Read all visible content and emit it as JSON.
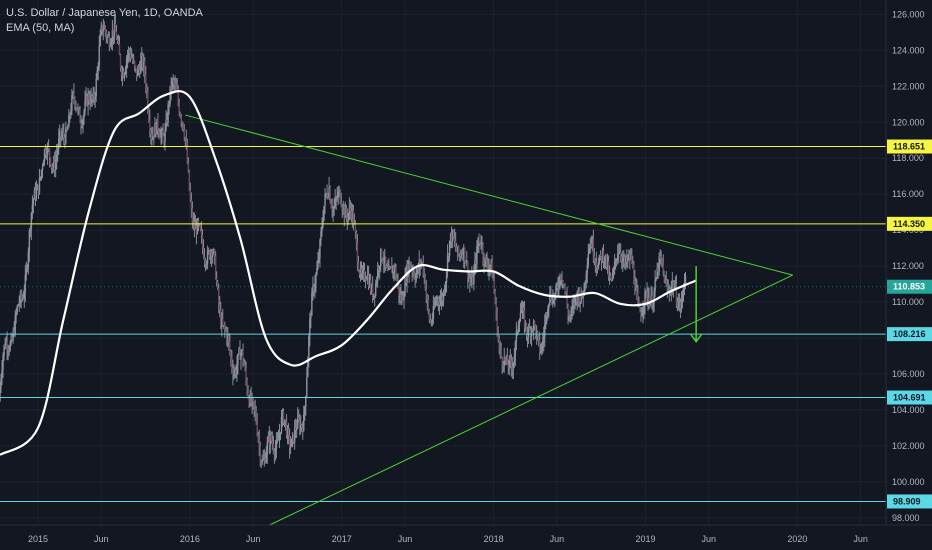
{
  "header": {
    "title": "U.S. Dollar / Japanese Yen, 1D, OANDA",
    "indicator": "EMA (50, MA)"
  },
  "colors": {
    "background": "#131722",
    "grid": "#1e222d",
    "candle": "#9aa0ab",
    "ema": "#ffffff",
    "trendline": "#4cd137",
    "resistance": "#f5f542",
    "support": "#5ad8e6",
    "arrow": "#4cd137",
    "price_tag": "#26a69a",
    "axis_text": "#b2b5be"
  },
  "chart_data": {
    "type": "line",
    "title": "U.S. Dollar / Japanese Yen, 1D, OANDA",
    "ylim": [
      97.6,
      126.8
    ],
    "x_range": [
      "2014-10",
      "2020-08"
    ],
    "grid": true,
    "x_ticks": [
      {
        "date": "2015-01",
        "label": "2015"
      },
      {
        "date": "2015-06",
        "label": "Jun"
      },
      {
        "date": "2016-01",
        "label": "2016"
      },
      {
        "date": "2016-06",
        "label": "Jun"
      },
      {
        "date": "2017-01",
        "label": "2017"
      },
      {
        "date": "2017-06",
        "label": "Jun"
      },
      {
        "date": "2018-01",
        "label": "2018"
      },
      {
        "date": "2018-06",
        "label": "Jun"
      },
      {
        "date": "2019-01",
        "label": "2019"
      },
      {
        "date": "2019-06",
        "label": "Jun"
      },
      {
        "date": "2020-01",
        "label": "2020"
      },
      {
        "date": "2020-06",
        "label": "Jun"
      }
    ],
    "y_ticks": [
      "98.000",
      "100.000",
      "102.000",
      "104.000",
      "106.000",
      "108.000",
      "110.000",
      "112.000",
      "114.000",
      "116.000",
      "118.000",
      "120.000",
      "122.000",
      "124.000",
      "126.000"
    ],
    "series": [
      {
        "name": "USDJPY",
        "x": [
          "2014-10",
          "2014-12",
          "2015-02",
          "2015-04",
          "2015-06",
          "2015-08",
          "2015-10",
          "2015-12",
          "2016-02",
          "2016-04",
          "2016-06",
          "2016-08",
          "2016-10",
          "2016-12",
          "2017-02",
          "2017-04",
          "2017-06",
          "2017-08",
          "2017-10",
          "2017-12",
          "2018-02",
          "2018-04",
          "2018-06",
          "2018-08",
          "2018-10",
          "2018-12",
          "2019-02",
          "2019-04"
        ],
        "y": [
          104.5,
          112.5,
          119.0,
          119.8,
          124.0,
          124.5,
          120.0,
          121.0,
          113.0,
          108.5,
          103.5,
          101.5,
          104.5,
          117.5,
          113.0,
          111.0,
          112.0,
          110.0,
          112.5,
          112.8,
          107.0,
          108.5,
          110.0,
          111.0,
          113.0,
          111.0,
          110.5,
          111.5
        ]
      },
      {
        "name": "EMA (50, MA)",
        "x": [
          "2014-10",
          "2015-01",
          "2015-03",
          "2015-05",
          "2015-07",
          "2015-09",
          "2015-11",
          "2016-01",
          "2016-03",
          "2016-05",
          "2016-07",
          "2016-09",
          "2016-11",
          "2017-01",
          "2017-03",
          "2017-05",
          "2017-07",
          "2017-09",
          "2017-11",
          "2018-01",
          "2018-03",
          "2018-05",
          "2018-07",
          "2018-09",
          "2018-11",
          "2019-01",
          "2019-03",
          "2019-05"
        ],
        "y": [
          101.5,
          103.0,
          109.0,
          115.0,
          119.5,
          120.5,
          121.5,
          121.4,
          118.0,
          113.5,
          108.0,
          106.5,
          107.0,
          107.6,
          109.0,
          110.7,
          112.0,
          111.8,
          111.7,
          111.7,
          110.9,
          110.4,
          110.3,
          110.5,
          109.9,
          109.9,
          110.6,
          111.2
        ]
      }
    ],
    "horizontal_levels": [
      {
        "value": 118.651,
        "label": "118.651",
        "role": "resistance"
      },
      {
        "value": 114.35,
        "label": "114.350",
        "role": "resistance"
      },
      {
        "value": 108.216,
        "label": "108.216",
        "role": "support"
      },
      {
        "value": 104.691,
        "label": "104.691",
        "role": "support"
      },
      {
        "value": 98.909,
        "label": "98.909",
        "role": "support"
      }
    ],
    "current_price": {
      "value": 110.853,
      "label": "110.853"
    },
    "trendlines": [
      {
        "from": {
          "date": "2015-12-20",
          "value": 120.4
        },
        "to": {
          "date": "2019-12-20",
          "value": 111.5
        }
      },
      {
        "from": {
          "date": "2016-07-10",
          "value": 97.6
        },
        "to": {
          "date": "2019-12-20",
          "value": 111.5
        }
      }
    ],
    "arrow": {
      "from": {
        "date": "2019-05",
        "value": 112.0
      },
      "to": {
        "date": "2019-05",
        "value": 107.8
      },
      "direction": "down"
    }
  }
}
